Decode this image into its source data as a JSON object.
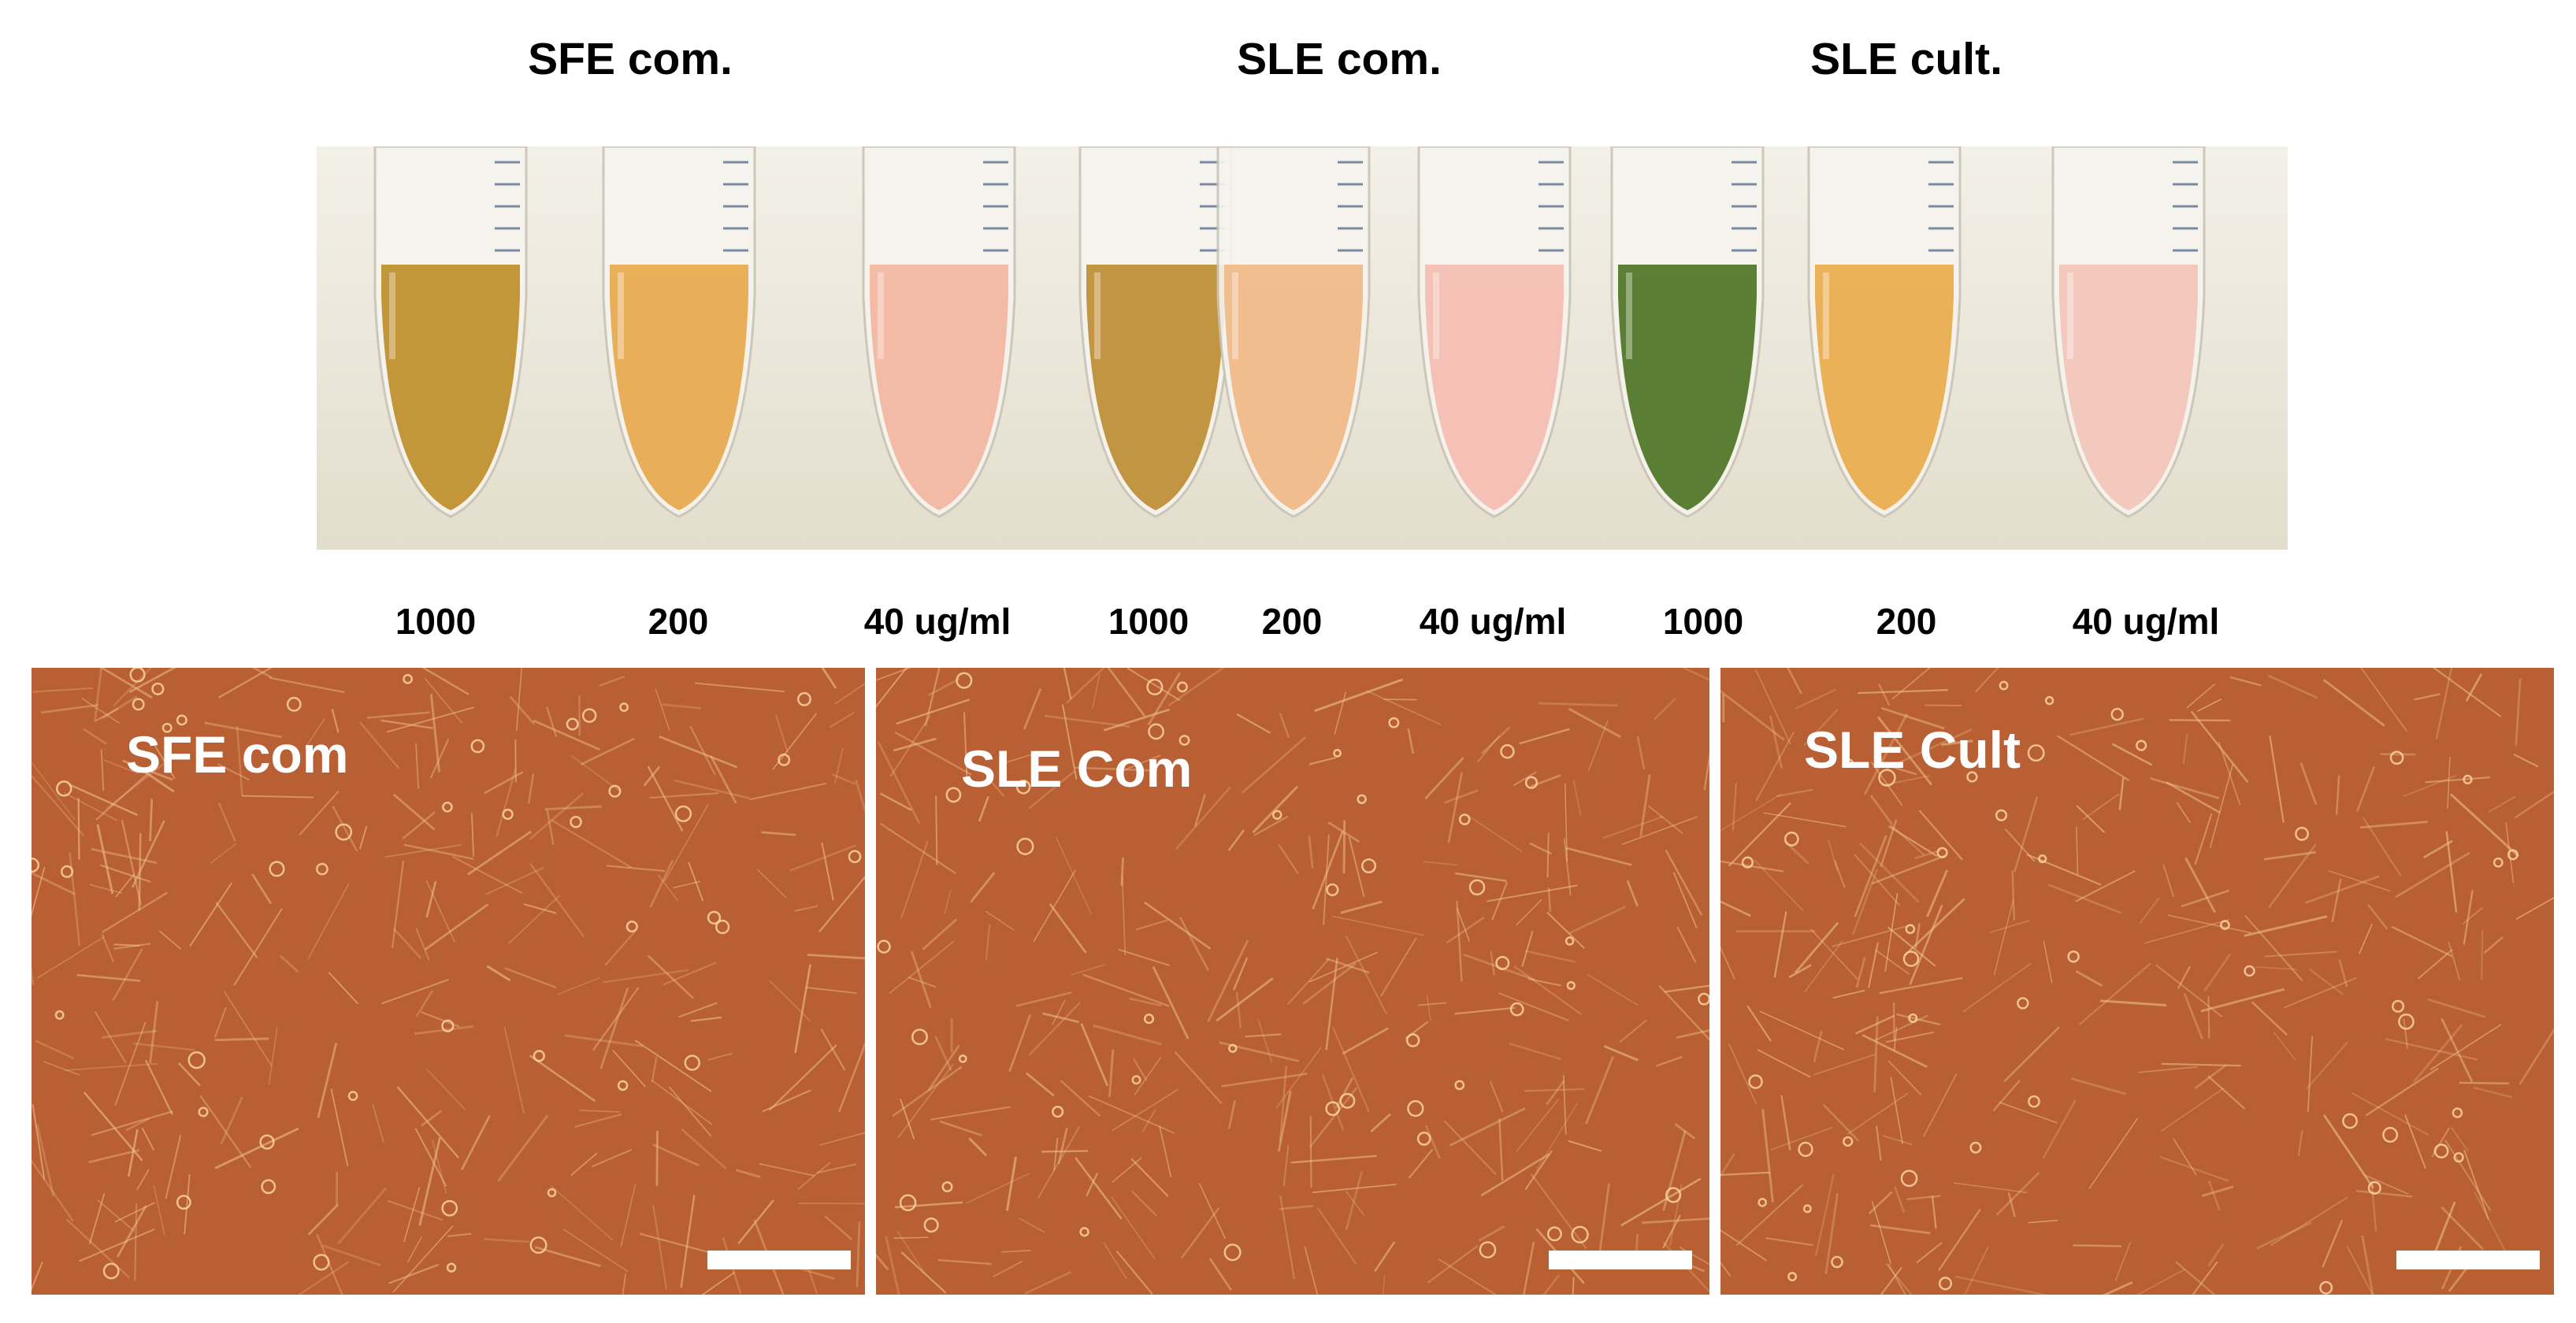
{
  "group_titles": [
    "SFE com.",
    "SLE com.",
    "SLE cult."
  ],
  "tube_concentrations": [
    "1000",
    "200",
    "40 ug/ml",
    "1000",
    "200",
    "40 ug/ml",
    "1000",
    "200",
    "40 ug/ml"
  ],
  "tube_colors": [
    "#b9861a",
    "#e6a23f",
    "#f2b29a",
    "#b88526",
    "#f0b47e",
    "#f4b8ae",
    "#3f6a15",
    "#e9a63e",
    "#f2c1b5"
  ],
  "panels": [
    {
      "label": "SFE com"
    },
    {
      "label": "SLE Com"
    },
    {
      "label": "SLE Cult"
    }
  ],
  "colors": {
    "culture_background": "#b85f34",
    "cell_line": "#f2c48f",
    "bench_background": "#ece8dc"
  }
}
